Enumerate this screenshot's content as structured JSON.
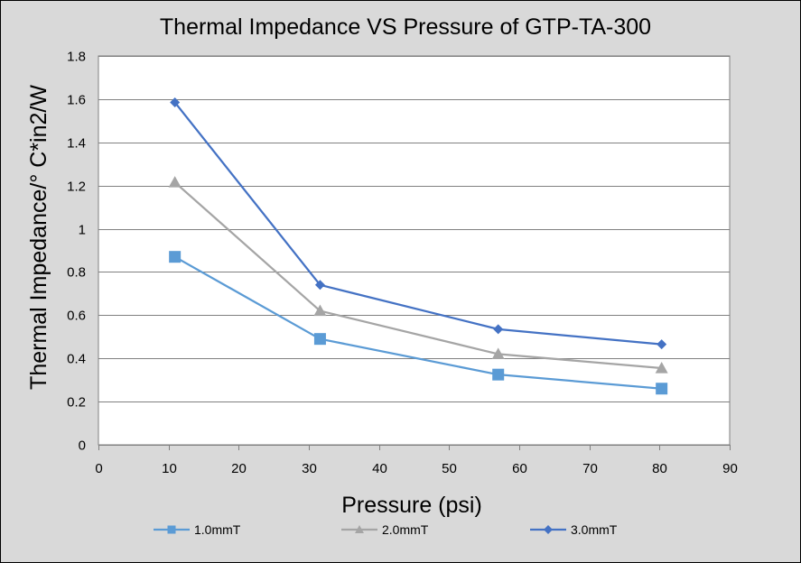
{
  "chart_data": {
    "type": "line",
    "title": "Thermal Impedance VS Pressure of GTP-TA-300",
    "xlabel": "Pressure (psi)",
    "ylabel": "Thermal Impedance/° C*in2/W",
    "xlim": [
      0,
      90
    ],
    "ylim": [
      0,
      1.8
    ],
    "xticks": [
      0,
      10,
      20,
      30,
      40,
      50,
      60,
      70,
      80,
      90
    ],
    "xtick_labels": [
      "0",
      "10",
      "20",
      "30",
      "40",
      "50",
      "60",
      "70",
      "80",
      "90"
    ],
    "yticks": [
      0,
      0.2,
      0.4,
      0.6,
      0.8,
      1,
      1.2,
      1.4,
      1.6,
      1.8
    ],
    "ytick_labels": [
      "0",
      "0.2",
      "0.4",
      "0.6",
      "0.8",
      "1",
      "1.2",
      "1.4",
      "1.6",
      "1.8"
    ],
    "grid": "horizontal",
    "legend_position": "bottom",
    "x": [
      10.9,
      31.6,
      57.0,
      80.3
    ],
    "series": [
      {
        "name": "1.0mmT",
        "values": [
          0.87,
          0.49,
          0.325,
          0.26
        ],
        "color": "#5b9bd5",
        "marker": "square"
      },
      {
        "name": "2.0mmT",
        "values": [
          1.215,
          0.62,
          0.42,
          0.355
        ],
        "color": "#a5a5a5",
        "marker": "triangle"
      },
      {
        "name": "3.0mmT",
        "values": [
          1.585,
          0.74,
          0.535,
          0.465
        ],
        "color": "#4472c4",
        "marker": "diamond"
      }
    ]
  }
}
